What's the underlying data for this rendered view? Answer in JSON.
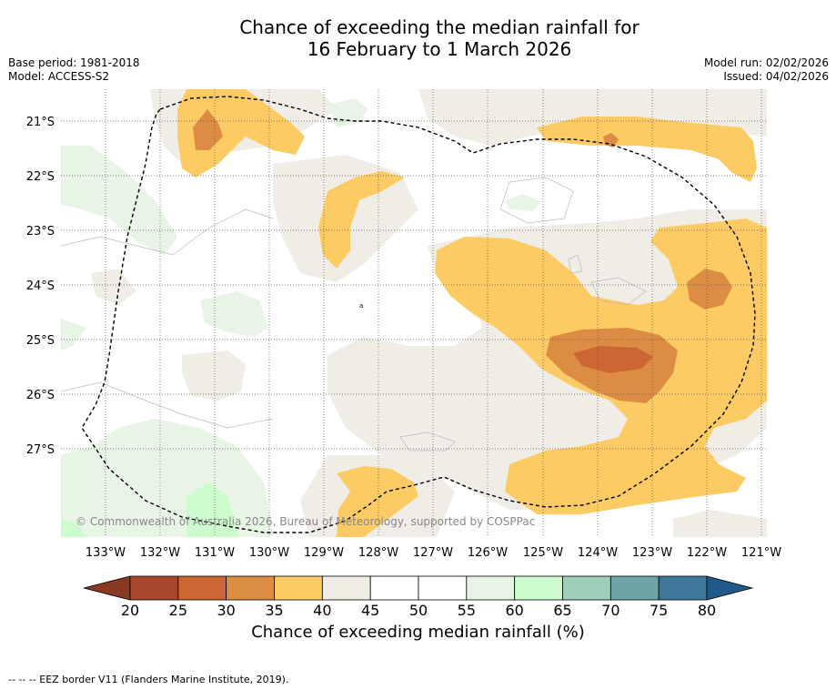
{
  "title": {
    "line1": "Chance of exceeding the median rainfall for",
    "line2": "16 February to 1 March 2026"
  },
  "meta": {
    "base_period": "Base period: 1981-2018",
    "model": "Model: ACCESS-S2",
    "model_run": "Model run: 02/02/2026",
    "issued": "Issued: 04/02/2026"
  },
  "map": {
    "lon_labels": [
      "133°W",
      "132°W",
      "131°W",
      "130°W",
      "129°W",
      "128°W",
      "127°W",
      "126°W",
      "125°W",
      "124°W",
      "123°W",
      "122°W",
      "121°W"
    ],
    "lat_labels": [
      "21°S",
      "22°S",
      "23°S",
      "24°S",
      "25°S",
      "26°S",
      "27°S"
    ],
    "copyright": "© Commonwealth of Australia 2026, Bureau of Meteorology, supported by COSPPac",
    "stray_label": "a",
    "colors": {
      "c20": "#a8482a",
      "c25": "#cc6633",
      "c30": "#dd8c44",
      "c35": "#fdcb64",
      "c40": "#f0ece6",
      "c45": "#ffffff",
      "c55": "#e8f4e6",
      "c60": "#ccfccc",
      "eez": "#000000",
      "grid": "#555555"
    }
  },
  "colorbar": {
    "ticks": [
      "20",
      "25",
      "30",
      "35",
      "40",
      "45",
      "50",
      "55",
      "60",
      "65",
      "70",
      "75",
      "80"
    ],
    "colors": [
      "#a8482a",
      "#cc6633",
      "#dd8c44",
      "#fdcb64",
      "#f0ece6",
      "#ffffff",
      "#ffffff",
      "#e8f4e6",
      "#ccfccc",
      "#9ecfbb",
      "#6ea4a8",
      "#3d7799"
    ],
    "low_extend": "#8b3a22",
    "high_extend": "#1f5a8a",
    "title": "Chance of exceeding median rainfall (%)"
  },
  "footer": "--  --  -- EEZ border V11 (Flanders Marine Institute, 2019)."
}
